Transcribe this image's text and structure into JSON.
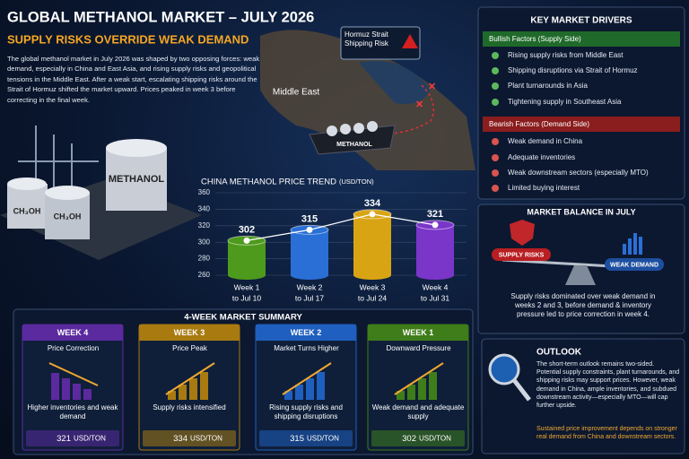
{
  "header": {
    "title": "GLOBAL METHANOL MARKET – JULY 2026",
    "subtitle": "SUPPLY RISKS OVERRIDE WEAK DEMAND",
    "intro": "The global methanol market in July 2026 was shaped by two opposing forces: weak demand, especially in China and East Asia, and rising supply risks and geopolitical tensions in the Middle East. After a weak start, escalating shipping risks around the Strait of Hormuz shifted the market upward. Prices peaked in week 3 before correcting in the final week."
  },
  "map": {
    "region": "Middle East",
    "callout": "Hormuz Strait Shipping Risk",
    "ship": "METHANOL"
  },
  "tanks": [
    "CH₃OH",
    "CH₃OH",
    "METHANOL"
  ],
  "chart_data": {
    "type": "bar",
    "title": "CHINA METHANOL PRICE TREND",
    "unit": "(USD/TON)",
    "categories": [
      "Week 1",
      "Week 2",
      "Week 3",
      "Week 4"
    ],
    "category_dates": [
      "to Jul 10",
      "to Jul 17",
      "to Jul 24",
      "to Jul 31"
    ],
    "values": [
      302,
      315,
      334,
      321
    ],
    "colors": [
      "#4e9a1c",
      "#2a6fd6",
      "#d9a414",
      "#7a35c9"
    ],
    "ylim": [
      260,
      360
    ],
    "yticks": [
      260,
      280,
      300,
      320,
      340,
      360
    ],
    "grid": true
  },
  "drivers": {
    "title": "KEY MARKET DRIVERS",
    "bullish": {
      "title": "Bullish Factors (Supply Side)",
      "items": [
        "Rising supply risks from Middle East",
        "Shipping disruptions via Strait of Hormuz",
        "Plant turnarounds in Asia",
        "Tightening supply in Southeast Asia"
      ]
    },
    "bearish": {
      "title": "Bearish Factors (Demand Side)",
      "items": [
        "Weak demand in China",
        "Adequate inventories",
        "Weak downstream sectors (especially MTO)",
        "Limited buying interest"
      ]
    }
  },
  "balance": {
    "title": "MARKET BALANCE IN JULY",
    "left": "SUPPLY RISKS",
    "right": "WEAK DEMAND",
    "text": "Supply risks dominated over weak demand in weeks 2 and 3, before demand & inventory pressure led to price correction in week 4."
  },
  "summary": {
    "title": "4-WEEK MARKET SUMMARY",
    "cards": [
      {
        "week": "WEEK 4",
        "title": "Price Correction",
        "text": "Higher inventories and weak demand",
        "price": 321,
        "unit": "USD/TON"
      },
      {
        "week": "WEEK 3",
        "title": "Price Peak",
        "text": "Supply risks intensified",
        "price": 334,
        "unit": "USD/TON"
      },
      {
        "week": "WEEK 2",
        "title": "Market Turns Higher",
        "text": "Rising supply risks and shipping disruptions",
        "price": 315,
        "unit": "USD/TON"
      },
      {
        "week": "WEEK 1",
        "title": "Downward Pressure",
        "text": "Weak demand and adequate supply",
        "price": 302,
        "unit": "USD/TON"
      }
    ]
  },
  "outlook": {
    "title": "OUTLOOK",
    "text": "The short-term outlook remains two-sided. Potential supply constraints, plant turnarounds, and shipping risks may support prices. However, weak demand in China, ample inventories, and subdued downstream activity—especially MTO—will cap further upside.",
    "note": "Sustained price improvement depends on stronger real demand from China and downstream sectors."
  }
}
